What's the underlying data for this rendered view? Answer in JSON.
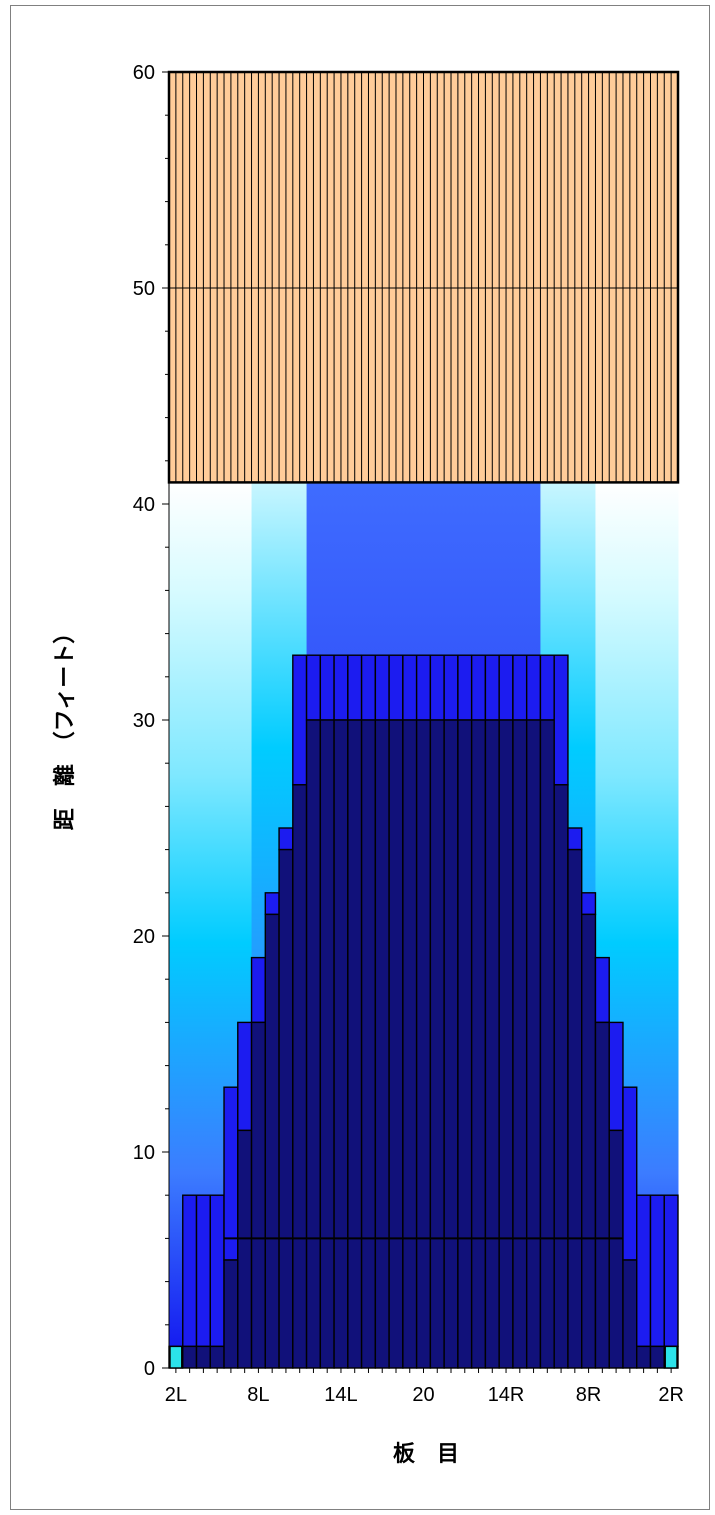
{
  "chart_data": {
    "type": "bar",
    "description_style": "stacked colour bands per board",
    "xlabel": "板　目",
    "ylabel": "距　離　（フィート）",
    "ylim": [
      0,
      60
    ],
    "yticks": [
      0,
      10,
      20,
      30,
      40,
      50,
      60
    ],
    "xtick_labels": [
      "2L",
      "8L",
      "14L",
      "20",
      "14R",
      "8R",
      "2R"
    ],
    "xtick_boards": [
      1,
      7,
      13,
      19,
      25,
      31,
      37
    ],
    "boards": [
      "1",
      "2",
      "3",
      "4",
      "5",
      "6",
      "7",
      "8",
      "9",
      "10",
      "11",
      "12",
      "13",
      "14",
      "15",
      "16",
      "17",
      "18",
      "19",
      "20",
      "21",
      "22",
      "23",
      "24",
      "25",
      "26",
      "27",
      "28",
      "29",
      "30",
      "31",
      "32",
      "33",
      "34",
      "35",
      "36",
      "37"
    ],
    "oil_top": [
      1,
      8,
      8,
      8,
      13,
      16,
      19,
      22,
      25,
      33,
      33,
      33,
      33,
      33,
      33,
      33,
      33,
      33,
      33,
      33,
      33,
      33,
      33,
      33,
      33,
      33,
      33,
      33,
      33,
      25,
      22,
      19,
      16,
      13,
      8,
      8,
      8
    ],
    "dark_top": [
      0,
      1,
      1,
      1,
      5,
      11,
      16,
      21,
      24,
      27,
      30,
      30,
      30,
      30,
      30,
      30,
      30,
      30,
      30,
      30,
      30,
      30,
      30,
      30,
      30,
      30,
      30,
      30,
      27,
      24,
      21,
      16,
      11,
      5,
      1,
      1,
      1
    ],
    "lane_end": 60,
    "oil_pattern_length": 41,
    "colors": {
      "dark": "#11117a",
      "oil": "#1c1cf0",
      "outer_top": "#ffffff",
      "outer_mid": "#00ccff",
      "outer_bottom": "#1010ee",
      "inner_top": "#3f6cff",
      "inner_bottom": "#0c0ce8",
      "dry_zone": "#ffcc99",
      "edge_marker": "#2be3ea"
    }
  }
}
